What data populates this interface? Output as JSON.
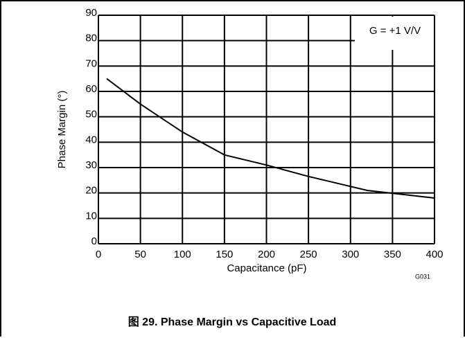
{
  "chart_data": {
    "type": "line",
    "x": [
      10,
      50,
      100,
      150,
      200,
      250,
      320,
      400
    ],
    "series": [
      {
        "name": "G = +1 V/V",
        "color": "#000000",
        "values": [
          65,
          55,
          44,
          35,
          31,
          26.5,
          21,
          18
        ]
      }
    ],
    "xlim": [
      0,
      400
    ],
    "xticks": [
      0,
      50,
      100,
      150,
      200,
      250,
      300,
      350,
      400
    ],
    "ylim": [
      0,
      90
    ],
    "yticks": [
      0,
      10,
      20,
      30,
      40,
      50,
      60,
      70,
      80,
      90
    ],
    "grid": true,
    "xlabel": "Capacitance (pF)",
    "ylabel": "Phase Margin (°)",
    "footnote": "G031",
    "caption": "图 29. Phase Margin vs Capacitive Load"
  }
}
